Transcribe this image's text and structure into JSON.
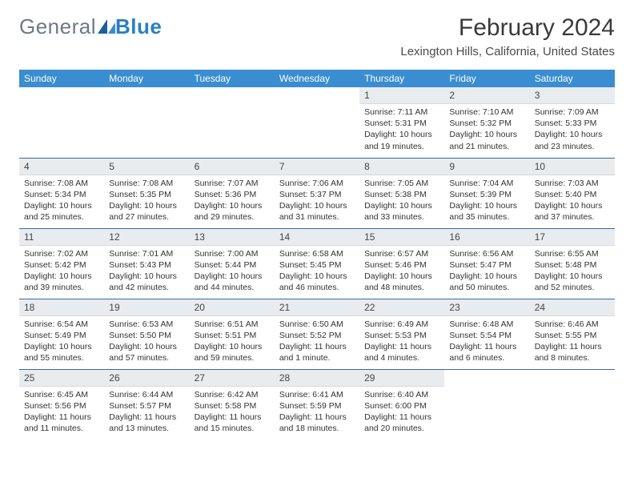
{
  "logo": {
    "text1": "General",
    "text2": "Blue"
  },
  "title": "February 2024",
  "location": "Lexington Hills, California, United States",
  "colors": {
    "header_bg": "#3a8dd0",
    "header_text": "#ffffff",
    "daynum_bg": "#e9ecef",
    "row_border": "#3a6a9a",
    "logo_gray": "#6b7a86",
    "logo_blue": "#2a7fc4"
  },
  "weekdays": [
    "Sunday",
    "Monday",
    "Tuesday",
    "Wednesday",
    "Thursday",
    "Friday",
    "Saturday"
  ],
  "weeks": [
    [
      {
        "empty": true
      },
      {
        "empty": true
      },
      {
        "empty": true
      },
      {
        "empty": true
      },
      {
        "day": "1",
        "sunrise": "7:11 AM",
        "sunset": "5:31 PM",
        "daylight": "10 hours and 19 minutes."
      },
      {
        "day": "2",
        "sunrise": "7:10 AM",
        "sunset": "5:32 PM",
        "daylight": "10 hours and 21 minutes."
      },
      {
        "day": "3",
        "sunrise": "7:09 AM",
        "sunset": "5:33 PM",
        "daylight": "10 hours and 23 minutes."
      }
    ],
    [
      {
        "day": "4",
        "sunrise": "7:08 AM",
        "sunset": "5:34 PM",
        "daylight": "10 hours and 25 minutes."
      },
      {
        "day": "5",
        "sunrise": "7:08 AM",
        "sunset": "5:35 PM",
        "daylight": "10 hours and 27 minutes."
      },
      {
        "day": "6",
        "sunrise": "7:07 AM",
        "sunset": "5:36 PM",
        "daylight": "10 hours and 29 minutes."
      },
      {
        "day": "7",
        "sunrise": "7:06 AM",
        "sunset": "5:37 PM",
        "daylight": "10 hours and 31 minutes."
      },
      {
        "day": "8",
        "sunrise": "7:05 AM",
        "sunset": "5:38 PM",
        "daylight": "10 hours and 33 minutes."
      },
      {
        "day": "9",
        "sunrise": "7:04 AM",
        "sunset": "5:39 PM",
        "daylight": "10 hours and 35 minutes."
      },
      {
        "day": "10",
        "sunrise": "7:03 AM",
        "sunset": "5:40 PM",
        "daylight": "10 hours and 37 minutes."
      }
    ],
    [
      {
        "day": "11",
        "sunrise": "7:02 AM",
        "sunset": "5:42 PM",
        "daylight": "10 hours and 39 minutes."
      },
      {
        "day": "12",
        "sunrise": "7:01 AM",
        "sunset": "5:43 PM",
        "daylight": "10 hours and 42 minutes."
      },
      {
        "day": "13",
        "sunrise": "7:00 AM",
        "sunset": "5:44 PM",
        "daylight": "10 hours and 44 minutes."
      },
      {
        "day": "14",
        "sunrise": "6:58 AM",
        "sunset": "5:45 PM",
        "daylight": "10 hours and 46 minutes."
      },
      {
        "day": "15",
        "sunrise": "6:57 AM",
        "sunset": "5:46 PM",
        "daylight": "10 hours and 48 minutes."
      },
      {
        "day": "16",
        "sunrise": "6:56 AM",
        "sunset": "5:47 PM",
        "daylight": "10 hours and 50 minutes."
      },
      {
        "day": "17",
        "sunrise": "6:55 AM",
        "sunset": "5:48 PM",
        "daylight": "10 hours and 52 minutes."
      }
    ],
    [
      {
        "day": "18",
        "sunrise": "6:54 AM",
        "sunset": "5:49 PM",
        "daylight": "10 hours and 55 minutes."
      },
      {
        "day": "19",
        "sunrise": "6:53 AM",
        "sunset": "5:50 PM",
        "daylight": "10 hours and 57 minutes."
      },
      {
        "day": "20",
        "sunrise": "6:51 AM",
        "sunset": "5:51 PM",
        "daylight": "10 hours and 59 minutes."
      },
      {
        "day": "21",
        "sunrise": "6:50 AM",
        "sunset": "5:52 PM",
        "daylight": "11 hours and 1 minute."
      },
      {
        "day": "22",
        "sunrise": "6:49 AM",
        "sunset": "5:53 PM",
        "daylight": "11 hours and 4 minutes."
      },
      {
        "day": "23",
        "sunrise": "6:48 AM",
        "sunset": "5:54 PM",
        "daylight": "11 hours and 6 minutes."
      },
      {
        "day": "24",
        "sunrise": "6:46 AM",
        "sunset": "5:55 PM",
        "daylight": "11 hours and 8 minutes."
      }
    ],
    [
      {
        "day": "25",
        "sunrise": "6:45 AM",
        "sunset": "5:56 PM",
        "daylight": "11 hours and 11 minutes."
      },
      {
        "day": "26",
        "sunrise": "6:44 AM",
        "sunset": "5:57 PM",
        "daylight": "11 hours and 13 minutes."
      },
      {
        "day": "27",
        "sunrise": "6:42 AM",
        "sunset": "5:58 PM",
        "daylight": "11 hours and 15 minutes."
      },
      {
        "day": "28",
        "sunrise": "6:41 AM",
        "sunset": "5:59 PM",
        "daylight": "11 hours and 18 minutes."
      },
      {
        "day": "29",
        "sunrise": "6:40 AM",
        "sunset": "6:00 PM",
        "daylight": "11 hours and 20 minutes."
      },
      {
        "empty": true
      },
      {
        "empty": true
      }
    ]
  ],
  "labels": {
    "sunrise_prefix": "Sunrise: ",
    "sunset_prefix": "Sunset: ",
    "daylight_prefix": "Daylight: "
  }
}
